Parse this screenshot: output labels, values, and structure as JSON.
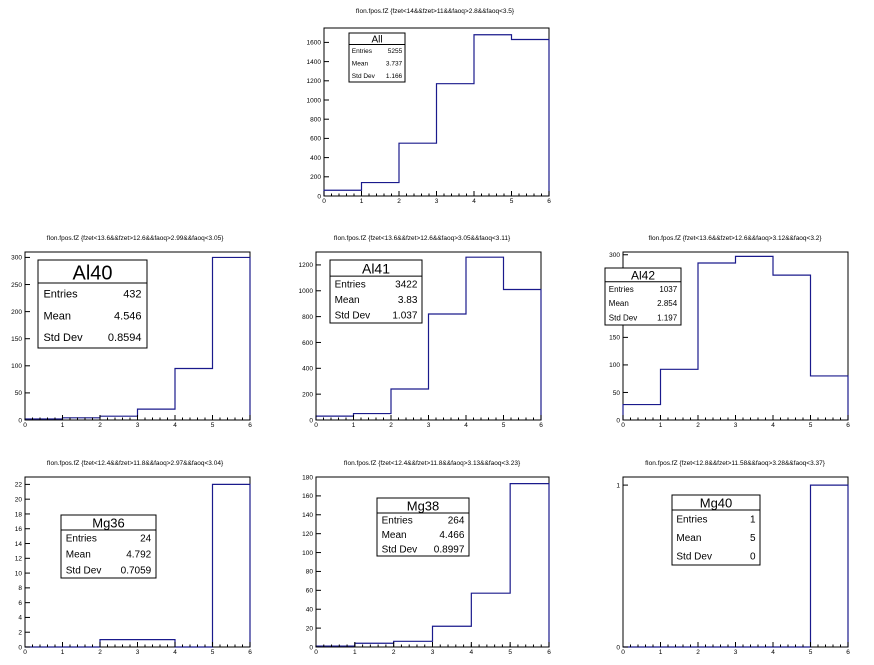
{
  "chart_data": [
    {
      "type": "histogram",
      "title": "fIon.fpos.fZ {fzet<14&&fzet>11&&faoq>2.8&&faoq<3.5}",
      "xlim": [
        0,
        6
      ],
      "ylim": [
        0,
        1750
      ],
      "xticks": [
        0,
        1,
        2,
        3,
        4,
        5,
        6
      ],
      "yticks": [
        0,
        200,
        400,
        600,
        800,
        1000,
        1200,
        1400,
        1600
      ],
      "bin_edges": [
        0,
        1,
        2,
        3,
        4,
        5,
        6
      ],
      "values": [
        60,
        140,
        550,
        1170,
        1680,
        1630
      ],
      "stats": {
        "name": "All",
        "rows": [
          {
            "label": "Entries",
            "value": "5255"
          },
          {
            "label": "Mean",
            "value": "3.737"
          },
          {
            "label": "Std Dev",
            "value": "1.166"
          }
        ]
      }
    },
    {
      "type": "histogram",
      "title": "fIon.fpos.fZ {fzet<13.6&&fzet>12.6&&faoq>2.99&&faoq<3.05}",
      "xlim": [
        0,
        6
      ],
      "ylim": [
        0,
        310
      ],
      "xticks": [
        0,
        1,
        2,
        3,
        4,
        5,
        6
      ],
      "yticks": [
        0,
        50,
        100,
        150,
        200,
        250,
        300
      ],
      "bin_edges": [
        0,
        1,
        2,
        3,
        4,
        5,
        6
      ],
      "values": [
        2,
        4,
        7,
        20,
        95,
        300
      ],
      "stats": {
        "name": "Al40",
        "rows": [
          {
            "label": "Entries",
            "value": "432"
          },
          {
            "label": "Mean",
            "value": "4.546"
          },
          {
            "label": "Std Dev",
            "value": "0.8594"
          }
        ]
      }
    },
    {
      "type": "histogram",
      "title": "fIon.fpos.fZ {fzet<13.6&&fzet>12.6&&faoq>3.05&&faoq<3.11}",
      "xlim": [
        0,
        6
      ],
      "ylim": [
        0,
        1300
      ],
      "xticks": [
        0,
        1,
        2,
        3,
        4,
        5,
        6
      ],
      "yticks": [
        0,
        200,
        400,
        600,
        800,
        1000,
        1200
      ],
      "bin_edges": [
        0,
        1,
        2,
        3,
        4,
        5,
        6
      ],
      "values": [
        30,
        50,
        240,
        820,
        1260,
        1010
      ],
      "stats": {
        "name": "Al41",
        "rows": [
          {
            "label": "Entries",
            "value": "3422"
          },
          {
            "label": "Mean",
            "value": "3.83"
          },
          {
            "label": "Std Dev",
            "value": "1.037"
          }
        ]
      }
    },
    {
      "type": "histogram",
      "title": "fIon.fpos.fZ {fzet<13.6&&fzet>12.6&&faoq>3.12&&faoq<3.2}",
      "xlim": [
        0,
        6
      ],
      "ylim": [
        0,
        305
      ],
      "xticks": [
        0,
        1,
        2,
        3,
        4,
        5,
        6
      ],
      "yticks": [
        0,
        50,
        100,
        150,
        200,
        250,
        300
      ],
      "bin_edges": [
        0,
        1,
        2,
        3,
        4,
        5,
        6
      ],
      "values": [
        28,
        92,
        285,
        297,
        263,
        80
      ],
      "stats": {
        "name": "Al42",
        "rows": [
          {
            "label": "Entries",
            "value": "1037"
          },
          {
            "label": "Mean",
            "value": "2.854"
          },
          {
            "label": "Std Dev",
            "value": "1.197"
          }
        ]
      }
    },
    {
      "type": "histogram",
      "title": "fIon.fpos.fZ {fzet<12.4&&fzet>11.8&&faoq>2.97&&faoq<3.04}",
      "xlim": [
        0,
        6
      ],
      "ylim": [
        0,
        23
      ],
      "xticks": [
        0,
        1,
        2,
        3,
        4,
        5,
        6
      ],
      "yticks": [
        0,
        2,
        4,
        6,
        8,
        10,
        12,
        14,
        16,
        18,
        20,
        22
      ],
      "bin_edges": [
        0,
        1,
        2,
        3,
        4,
        5,
        6
      ],
      "values": [
        0,
        0,
        1,
        1,
        0,
        22
      ],
      "stats": {
        "name": "Mg36",
        "rows": [
          {
            "label": "Entries",
            "value": "24"
          },
          {
            "label": "Mean",
            "value": "4.792"
          },
          {
            "label": "Std Dev",
            "value": "0.7059"
          }
        ]
      }
    },
    {
      "type": "histogram",
      "title": "fIon.fpos.fZ {fzet<12.4&&fzet>11.8&&faoq>3.13&&faoq<3.23}",
      "xlim": [
        0,
        6
      ],
      "ylim": [
        0,
        180
      ],
      "xticks": [
        0,
        1,
        2,
        3,
        4,
        5,
        6
      ],
      "yticks": [
        0,
        20,
        40,
        60,
        80,
        100,
        120,
        140,
        160,
        180
      ],
      "bin_edges": [
        0,
        1,
        2,
        3,
        4,
        5,
        6
      ],
      "values": [
        1,
        4,
        6,
        22,
        57,
        173
      ],
      "stats": {
        "name": "Mg38",
        "rows": [
          {
            "label": "Entries",
            "value": "264"
          },
          {
            "label": "Mean",
            "value": "4.466"
          },
          {
            "label": "Std Dev",
            "value": "0.8997"
          }
        ]
      }
    },
    {
      "type": "histogram",
      "title": "fIon.fpos.fZ {fzet<12.8&&fzet>11.58&&faoq>3.28&&faoq<3.37}",
      "xlim": [
        0,
        6
      ],
      "ylim": [
        0,
        1.05
      ],
      "xticks": [
        0,
        1,
        2,
        3,
        4,
        5,
        6
      ],
      "yticks": [
        0,
        1
      ],
      "bin_edges": [
        0,
        1,
        2,
        3,
        4,
        5,
        6
      ],
      "values": [
        0,
        0,
        0,
        0,
        0,
        1
      ],
      "stats": {
        "name": "Mg40",
        "rows": [
          {
            "label": "Entries",
            "value": "1"
          },
          {
            "label": "Mean",
            "value": "5"
          },
          {
            "label": "Std Dev",
            "value": "0"
          }
        ]
      }
    }
  ]
}
